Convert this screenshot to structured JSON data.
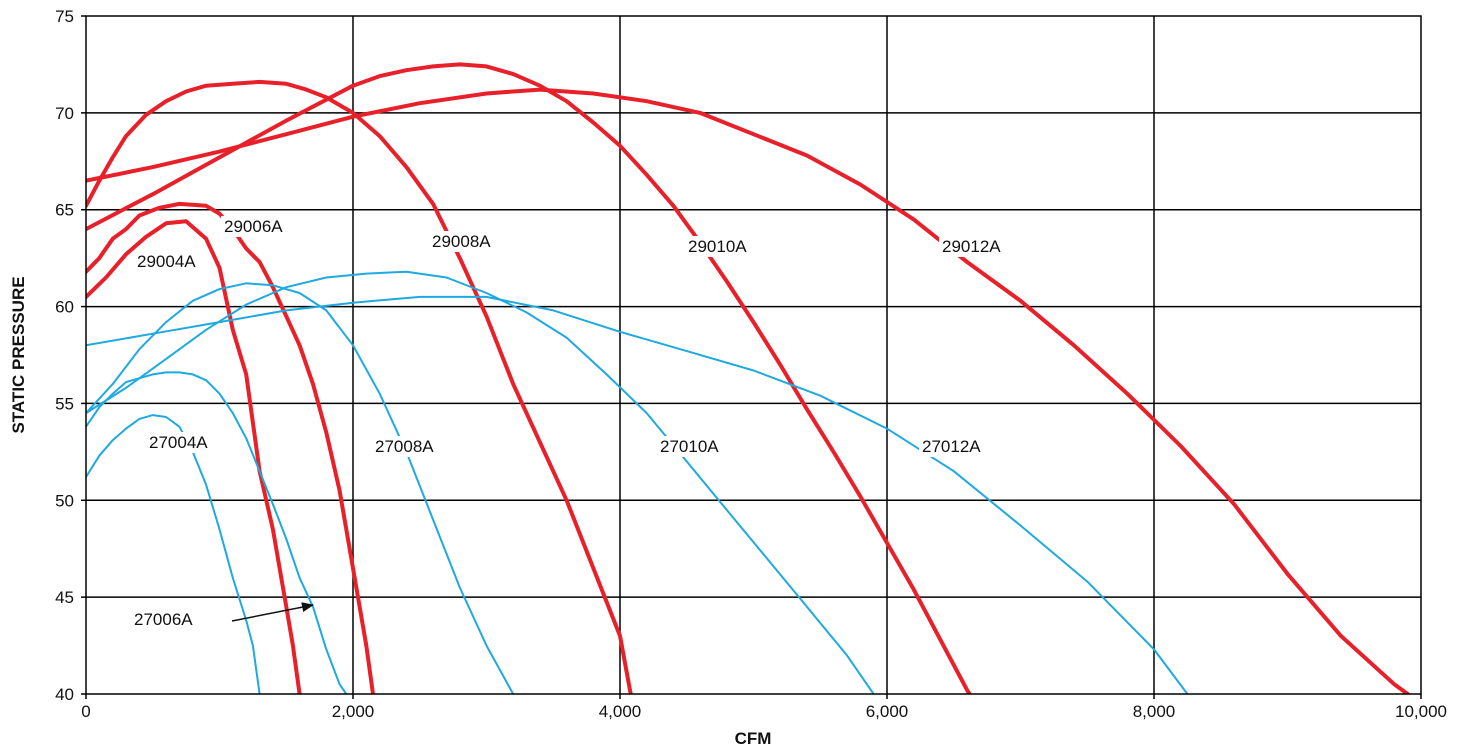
{
  "chart_data": {
    "type": "line",
    "xlabel": "CFM",
    "ylabel": "STATIC PRESSURE",
    "xlim": [
      0,
      10000
    ],
    "ylim": [
      40,
      75
    ],
    "x_ticks": [
      0,
      2000,
      4000,
      6000,
      8000,
      10000
    ],
    "x_tick_labels": [
      "0",
      "2,000",
      "4,000",
      "6,000",
      "8,000",
      "10,000"
    ],
    "y_ticks": [
      40,
      45,
      50,
      55,
      60,
      65,
      70,
      75
    ],
    "y_tick_labels": [
      "40",
      "45",
      "50",
      "55",
      "60",
      "65",
      "70",
      "75"
    ],
    "grid": true,
    "colors": {
      "red_series": "#e8202a",
      "blue_series": "#1fa9e1"
    },
    "series": [
      {
        "name": "29004A",
        "color": "red",
        "x": [
          0,
          150,
          300,
          450,
          600,
          750,
          900,
          1000,
          1100,
          1200,
          1300,
          1400,
          1500,
          1550,
          1600
        ],
        "y": [
          60.5,
          61.5,
          62.7,
          63.6,
          64.3,
          64.4,
          63.5,
          62,
          58.8,
          56.5,
          51.5,
          48.5,
          44.5,
          42.5,
          40
        ]
      },
      {
        "name": "29006A",
        "color": "red",
        "x": [
          0,
          100,
          200,
          300,
          400,
          550,
          700,
          900,
          1000,
          1100,
          1200,
          1300,
          1400,
          1500,
          1600,
          1700,
          1800,
          1900,
          2000,
          2100,
          2150
        ],
        "y": [
          61.8,
          62.5,
          63.5,
          64,
          64.7,
          65.1,
          65.3,
          65.2,
          64.8,
          64,
          63,
          62.3,
          61,
          59.5,
          58,
          56,
          53.5,
          50.5,
          46.5,
          42.5,
          40
        ]
      },
      {
        "name": "29008A",
        "color": "red",
        "x": [
          0,
          100,
          200,
          300,
          450,
          600,
          750,
          900,
          1100,
          1300,
          1500,
          1650,
          1800,
          2000,
          2200,
          2400,
          2600,
          2800,
          3000,
          3200,
          3400,
          3600,
          3800,
          4000,
          4080
        ],
        "y": [
          65.2,
          66.5,
          67.7,
          68.8,
          69.9,
          70.6,
          71.1,
          71.4,
          71.5,
          71.6,
          71.5,
          71.2,
          70.8,
          70,
          68.8,
          67.2,
          65.3,
          62.5,
          59.5,
          56,
          53,
          50,
          46.5,
          43,
          40
        ]
      },
      {
        "name": "29010A",
        "color": "red",
        "x": [
          0,
          500,
          1000,
          1500,
          2000,
          2200,
          2400,
          2600,
          2800,
          3000,
          3200,
          3400,
          3600,
          3800,
          4000,
          4200,
          4400,
          4600,
          4800,
          5000,
          5200,
          5400,
          5600,
          5800,
          6000,
          6200,
          6400,
          6600,
          6800,
          7000
        ],
        "y": [
          64,
          65.8,
          67.7,
          69.6,
          71.4,
          71.9,
          72.2,
          72.4,
          72.5,
          72.4,
          72,
          71.4,
          70.6,
          69.5,
          68.3,
          66.8,
          65.2,
          63.3,
          61.3,
          59.2,
          57,
          54.7,
          52.5,
          50.2,
          47.8,
          45.4,
          42.8,
          40.2,
          38,
          35.8
        ]
      },
      {
        "name": "29012A",
        "color": "red",
        "x": [
          0,
          500,
          1000,
          1500,
          2000,
          2500,
          3000,
          3200,
          3400,
          3800,
          4200,
          4600,
          5000,
          5400,
          5800,
          6200,
          6600,
          7000,
          7400,
          7800,
          8200,
          8600,
          9000,
          9400,
          9800,
          9900
        ],
        "y": [
          66.5,
          67.2,
          68,
          68.9,
          69.8,
          70.5,
          71,
          71.1,
          71.2,
          71,
          70.6,
          70,
          68.9,
          67.8,
          66.3,
          64.5,
          62.3,
          60.3,
          58,
          55.5,
          52.8,
          49.8,
          46.2,
          43,
          40.5,
          40
        ]
      },
      {
        "name": "27004A",
        "color": "blue",
        "x": [
          0,
          100,
          200,
          300,
          400,
          500,
          600,
          700,
          800,
          900,
          1000,
          1100,
          1200,
          1250,
          1300
        ],
        "y": [
          51.2,
          52.3,
          53.1,
          53.7,
          54.2,
          54.4,
          54.3,
          53.8,
          52.5,
          50.8,
          48.5,
          46,
          43.8,
          42.5,
          40
        ]
      },
      {
        "name": "27006A",
        "color": "blue",
        "x": [
          0,
          100,
          200,
          300,
          400,
          500,
          600,
          700,
          800,
          900,
          1000,
          1100,
          1200,
          1300,
          1400,
          1500,
          1600,
          1700,
          1800,
          1900,
          1950
        ],
        "y": [
          53.8,
          54.8,
          55.5,
          56.1,
          56.3,
          56.5,
          56.6,
          56.6,
          56.5,
          56.2,
          55.5,
          54.5,
          53.2,
          51.5,
          49.8,
          48,
          46,
          44.5,
          42.3,
          40.5,
          40
        ]
      },
      {
        "name": "27008A",
        "color": "blue",
        "x": [
          0,
          200,
          400,
          600,
          800,
          1000,
          1200,
          1400,
          1600,
          1800,
          2000,
          2200,
          2400,
          2600,
          2800,
          3000,
          3200
        ],
        "y": [
          54.5,
          56,
          57.8,
          59.2,
          60.3,
          60.9,
          61.2,
          61.1,
          60.7,
          59.8,
          58,
          55.5,
          52.5,
          49,
          45.5,
          42.5,
          40
        ]
      },
      {
        "name": "27010A",
        "color": "blue",
        "x": [
          0,
          300,
          600,
          900,
          1200,
          1500,
          1800,
          2100,
          2400,
          2700,
          3000,
          3300,
          3600,
          3900,
          4200,
          4500,
          4800,
          5100,
          5400,
          5700,
          5900
        ],
        "y": [
          54.5,
          55.8,
          57.3,
          58.8,
          60.1,
          61,
          61.5,
          61.7,
          61.8,
          61.5,
          60.7,
          59.7,
          58.4,
          56.5,
          54.5,
          52,
          49.5,
          47,
          44.5,
          42,
          40
        ]
      },
      {
        "name": "27012A",
        "color": "blue",
        "x": [
          0,
          500,
          1000,
          1500,
          2000,
          2500,
          3000,
          3500,
          4000,
          4500,
          5000,
          5500,
          6000,
          6500,
          7000,
          7500,
          8000,
          8250
        ],
        "y": [
          58,
          58.6,
          59.2,
          59.8,
          60.2,
          60.5,
          60.5,
          59.8,
          58.7,
          57.7,
          56.7,
          55.4,
          53.7,
          51.5,
          48.7,
          45.8,
          42.3,
          40
        ]
      }
    ],
    "annotations": [
      {
        "text": "29004A"
      },
      {
        "text": "29006A"
      },
      {
        "text": "29008A"
      },
      {
        "text": "29010A"
      },
      {
        "text": "29012A"
      },
      {
        "text": "27004A"
      },
      {
        "text": "27006A"
      },
      {
        "text": "27008A"
      },
      {
        "text": "27010A"
      },
      {
        "text": "27012A"
      }
    ]
  }
}
